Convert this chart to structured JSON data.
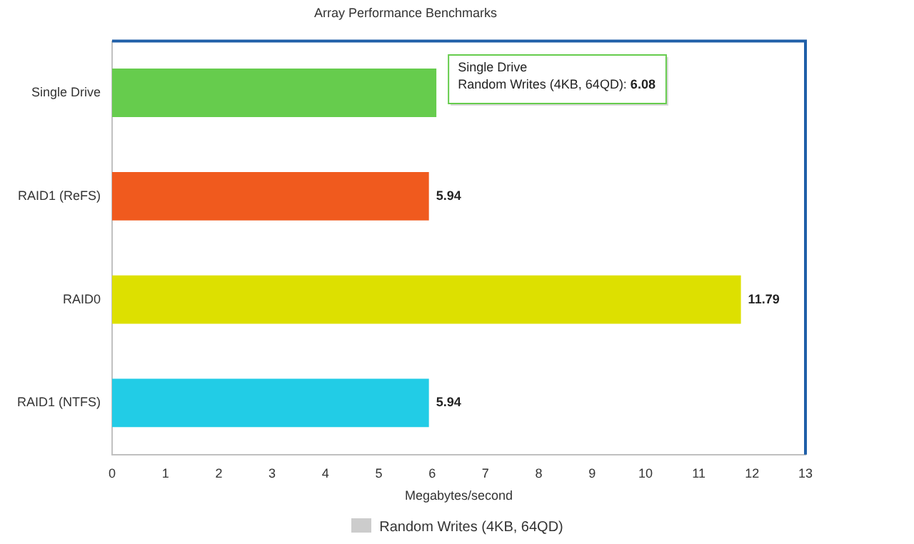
{
  "chart_data": {
    "type": "bar",
    "orientation": "horizontal",
    "title": "Array Performance Benchmarks",
    "xlabel": "Megabytes/second",
    "categories": [
      "Single Drive",
      "RAID1 (ReFS)",
      "RAID0",
      "RAID1 (NTFS)"
    ],
    "series": [
      {
        "name": "Random Writes (4KB, 64QD)",
        "color": "#cccccc",
        "colors": [
          "#66cc4d",
          "#f05a1e",
          "#dde000",
          "#22cce6"
        ],
        "values": [
          6.08,
          5.94,
          11.79,
          5.94
        ],
        "value_labels": [
          null,
          "5.94",
          "11.79",
          "5.94"
        ]
      }
    ],
    "xlim": [
      0,
      13
    ],
    "xticks": [
      0,
      1,
      2,
      3,
      4,
      5,
      6,
      7,
      8,
      9,
      10,
      11,
      12,
      13
    ],
    "grid": false,
    "legend": "bottom",
    "annotations": [
      {
        "text": "Single Drive\nRandom Writes (4KB, 64QD): 6.08",
        "x": 6.08,
        "y": "Single Drive"
      }
    ]
  }
}
